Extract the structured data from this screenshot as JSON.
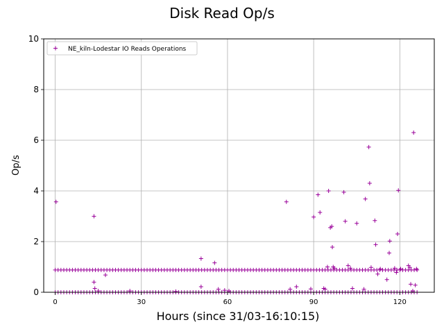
{
  "chart_data": {
    "type": "scatter",
    "title": "Disk Read Op/s",
    "xlabel": "Hours (since 31/03-16:10:15)",
    "ylabel": "Op/s",
    "xlim": [
      -4,
      132
    ],
    "ylim": [
      0,
      10
    ],
    "xticks": [
      0,
      30,
      60,
      90,
      120
    ],
    "yticks": [
      0,
      2,
      4,
      6,
      8,
      10
    ],
    "grid": true,
    "legend_position": "top-left",
    "marker": "+",
    "series": [
      {
        "name": "NE_kiln-Lodestar IO Reads Operations",
        "color": "#990099",
        "baseline_levels": [
          0.0,
          0.88
        ],
        "baseline_x_range": [
          0,
          126
        ],
        "points": [
          [
            0.3,
            3.57
          ],
          [
            13.5,
            3.0
          ],
          [
            13.5,
            0.4
          ],
          [
            13.8,
            0.15
          ],
          [
            15.0,
            0.05
          ],
          [
            17.5,
            0.68
          ],
          [
            26.0,
            0.05
          ],
          [
            42.0,
            0.03
          ],
          [
            50.8,
            1.33
          ],
          [
            50.8,
            0.22
          ],
          [
            55.5,
            1.16
          ],
          [
            56.8,
            0.12
          ],
          [
            59.0,
            0.08
          ],
          [
            60.5,
            0.05
          ],
          [
            80.5,
            3.57
          ],
          [
            81.8,
            0.12
          ],
          [
            84.0,
            0.22
          ],
          [
            89.0,
            0.13
          ],
          [
            90.0,
            2.97
          ],
          [
            91.5,
            3.85
          ],
          [
            92.2,
            3.15
          ],
          [
            93.5,
            0.15
          ],
          [
            94.0,
            0.12
          ],
          [
            94.8,
            1.0
          ],
          [
            95.2,
            4.0
          ],
          [
            95.8,
            2.55
          ],
          [
            96.3,
            2.6
          ],
          [
            96.5,
            1.78
          ],
          [
            96.8,
            1.0
          ],
          [
            97.2,
            0.95
          ],
          [
            100.5,
            3.95
          ],
          [
            101.0,
            2.8
          ],
          [
            102.0,
            1.05
          ],
          [
            102.8,
            0.95
          ],
          [
            103.5,
            0.15
          ],
          [
            105.0,
            2.72
          ],
          [
            107.5,
            0.12
          ],
          [
            108.0,
            3.68
          ],
          [
            109.2,
            5.73
          ],
          [
            109.5,
            4.3
          ],
          [
            110.0,
            0.98
          ],
          [
            111.3,
            2.83
          ],
          [
            111.6,
            1.88
          ],
          [
            112.3,
            0.72
          ],
          [
            113.2,
            0.92
          ],
          [
            115.5,
            0.5
          ],
          [
            116.3,
            1.55
          ],
          [
            116.5,
            2.02
          ],
          [
            118.2,
            0.95
          ],
          [
            118.8,
            0.78
          ],
          [
            119.2,
            2.3
          ],
          [
            119.5,
            4.02
          ],
          [
            120.3,
            0.92
          ],
          [
            123.0,
            1.05
          ],
          [
            123.5,
            0.98
          ],
          [
            123.8,
            0.32
          ],
          [
            124.8,
            6.3
          ],
          [
            125.4,
            0.28
          ],
          [
            125.8,
            0.92
          ],
          [
            124.5,
            0.05
          ]
        ]
      }
    ]
  }
}
